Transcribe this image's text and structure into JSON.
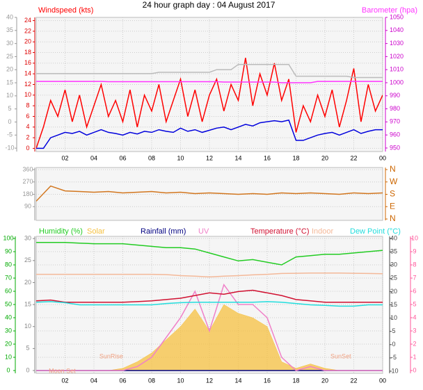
{
  "title": "24 hour graph day : 04 August 2017",
  "chart_data": [
    {
      "type": "line",
      "x": [
        0,
        0.5,
        1,
        1.5,
        2,
        2.5,
        3,
        3.5,
        4,
        4.5,
        5,
        5.5,
        6,
        6.5,
        7,
        7.5,
        8,
        8.5,
        9,
        9.5,
        10,
        10.5,
        11,
        11.5,
        12,
        12.5,
        13,
        13.5,
        14,
        14.5,
        15,
        15.5,
        16,
        16.5,
        17,
        17.5,
        18,
        18.5,
        19,
        19.5,
        20,
        20.5,
        21,
        21.5,
        22,
        22.5,
        23,
        23.5,
        24
      ],
      "xlim": [
        0,
        24
      ],
      "xticks": [
        {
          "value": 2,
          "label": "02"
        },
        {
          "value": 4,
          "label": "04"
        },
        {
          "value": 6,
          "label": "06"
        },
        {
          "value": 8,
          "label": "08"
        },
        10,
        12,
        14,
        16,
        18,
        20,
        22,
        {
          "value": 24,
          "label": "00"
        }
      ],
      "ylim": [
        -0.6,
        24.6
      ],
      "yticks": [
        0,
        2,
        4,
        6,
        8,
        10,
        12,
        14,
        16,
        18,
        20,
        22,
        24
      ],
      "y2lim": [
        947.3,
        1050
      ],
      "y2ticks": [
        950,
        960,
        970,
        980,
        990,
        1000,
        1010,
        1020,
        1030,
        1040,
        1050
      ],
      "y3lim": [
        -11.3,
        40
      ],
      "y3ticks": [
        -10,
        -5,
        0,
        5,
        10,
        15,
        20,
        25,
        30,
        35,
        40
      ],
      "axis_colors": {
        "y": "#dd0000",
        "y2": "#cc00cc",
        "y3": "#999999"
      },
      "grid": true,
      "series": [
        {
          "name": "Windspeed (kts)",
          "color": "#ff0000",
          "values": [
            0,
            4,
            9,
            6,
            11,
            5,
            10,
            4,
            8,
            12,
            6,
            9,
            5,
            11,
            4,
            10,
            7,
            12,
            5,
            9,
            13,
            6,
            11,
            5,
            10,
            13,
            7,
            12,
            9,
            17,
            8,
            14,
            10,
            16,
            9,
            13,
            3,
            8,
            5,
            10,
            6,
            11,
            4,
            9,
            15,
            5,
            12,
            7,
            10
          ]
        },
        {
          "color": "#0000dd",
          "values": [
            0,
            0,
            2,
            2.5,
            3,
            2.8,
            3.2,
            2.5,
            3,
            3.5,
            3,
            2.8,
            2.5,
            3,
            2.7,
            3.2,
            3,
            3.5,
            3.2,
            3,
            3.8,
            3.2,
            3.5,
            3,
            3.4,
            3.8,
            4,
            3.5,
            4,
            4.5,
            4.2,
            4.8,
            5,
            5.2,
            5,
            5.3,
            1.5,
            1.5,
            2,
            2.5,
            2.8,
            3,
            2.5,
            3,
            3.5,
            2.8,
            3.2,
            3.5,
            3.5
          ]
        },
        {
          "color": "#bbbbbb",
          "axis": "y3",
          "values": [
            18.5,
            18.5,
            18.5,
            18.5,
            18.5,
            18.5,
            18.5,
            18.5,
            18.5,
            18.5,
            18.5,
            18.5,
            18.5,
            18.5,
            18.5,
            18.5,
            18.5,
            19,
            19,
            19,
            19,
            19,
            19,
            19,
            19,
            20,
            20,
            20,
            22,
            22,
            22,
            22,
            22,
            22,
            22,
            22,
            17.5,
            17.5,
            17.5,
            17.5,
            17.5,
            17.5,
            17.5,
            17.5,
            17,
            17,
            17,
            17,
            17
          ]
        },
        {
          "name": "Barometer (hpa)",
          "color": "#ff33ff",
          "axis": "y2",
          "values": [
            1001,
            1001,
            1001,
            1001,
            1001,
            1001,
            1001,
            1001,
            1001,
            1001,
            1000.8,
            1000.8,
            1000.8,
            1000.8,
            1000.8,
            1000.8,
            1000.8,
            1000.8,
            1000.8,
            1000.8,
            1000.8,
            1000.8,
            1000.8,
            1000.8,
            1000.8,
            1000.8,
            1000.5,
            1000.5,
            1000.5,
            1000.5,
            1000.5,
            1000.5,
            1000.5,
            1000.5,
            1000,
            1000,
            1000,
            1000,
            1000,
            1001,
            1001,
            1001,
            1001,
            1001,
            1001,
            1001,
            1001,
            1001,
            1001
          ]
        }
      ]
    },
    {
      "type": "line",
      "x": [
        0,
        1,
        2,
        3,
        4,
        5,
        6,
        7,
        8,
        9,
        10,
        11,
        12,
        13,
        14,
        15,
        16,
        17,
        18,
        19,
        20,
        21,
        22,
        23,
        24
      ],
      "xlim": [
        0,
        24
      ],
      "ylim": [
        -10,
        375
      ],
      "yticks": [
        90,
        180,
        270,
        360
      ],
      "y2lim": [
        -10,
        375
      ],
      "y2ticks": [
        {
          "value": 0,
          "label": "N"
        },
        {
          "value": 90,
          "label": "E"
        },
        {
          "value": 180,
          "label": "S"
        },
        {
          "value": 270,
          "label": "W"
        },
        {
          "value": 360,
          "label": "N"
        }
      ],
      "axis_colors": {
        "y": "#999999",
        "y2": "#cc6600"
      },
      "grid": true,
      "series": [
        {
          "color": "#d2761e",
          "values": [
            130,
            240,
            205,
            200,
            195,
            200,
            190,
            195,
            200,
            190,
            195,
            185,
            190,
            185,
            180,
            185,
            180,
            190,
            185,
            190,
            185,
            180,
            190,
            185,
            190
          ]
        }
      ]
    },
    {
      "type": "line",
      "x": [
        0,
        1,
        2,
        3,
        4,
        5,
        6,
        7,
        8,
        9,
        10,
        11,
        12,
        13,
        14,
        15,
        16,
        17,
        18,
        19,
        20,
        21,
        22,
        23,
        24
      ],
      "xlim": [
        0,
        24
      ],
      "xticks": [
        {
          "value": 2,
          "label": "02"
        },
        {
          "value": 4,
          "label": "04"
        },
        {
          "value": 6,
          "label": "06"
        },
        {
          "value": 8,
          "label": "08"
        },
        10,
        12,
        14,
        16,
        18,
        20,
        22,
        {
          "value": 24,
          "label": "00"
        }
      ],
      "ylim": [
        -2.1,
        101.6
      ],
      "yticks": [
        0,
        10,
        20,
        30,
        40,
        50,
        60,
        70,
        80,
        90,
        100
      ],
      "y2lim": [
        -10.8,
        40.8
      ],
      "y2ticks": [
        -10,
        -5,
        0,
        5,
        10,
        15,
        20,
        25,
        30,
        35,
        40
      ],
      "y3lim": [
        -0.63,
        30.5
      ],
      "y3ticks": [
        0,
        5,
        10,
        15,
        20,
        25,
        30
      ],
      "y4lim": [
        -0.21,
        10.16
      ],
      "y4ticks": [
        0,
        1,
        2,
        3,
        4,
        5,
        6,
        7,
        8,
        9,
        10
      ],
      "axis_colors": {
        "y": "#00aa00",
        "y2": "#444444",
        "y3": "#888888",
        "y4": "#ff5599"
      },
      "grid": true,
      "series": [
        {
          "name": "Humidity (%)",
          "color": "#22cc22",
          "values": [
            97,
            97,
            97,
            96.5,
            96,
            96,
            96,
            95,
            94,
            93,
            93,
            92,
            89,
            86,
            83,
            84,
            82,
            80,
            86,
            87,
            88,
            88,
            89,
            90,
            91
          ]
        },
        {
          "name": "Solar",
          "color": "#f5c040",
          "axis": "y3",
          "area": true,
          "values": [
            0,
            0,
            0,
            0,
            0,
            0,
            0.5,
            2,
            4,
            7,
            10,
            14,
            9,
            15,
            13,
            12,
            10,
            2,
            0.5,
            1.5,
            0.5,
            0,
            0,
            0,
            0
          ]
        },
        {
          "name": "Rainfall (mm)",
          "color": "#000080",
          "axis": "y3",
          "values": [
            0,
            0,
            0,
            0,
            0,
            0,
            0,
            0,
            0,
            0,
            0,
            0,
            0,
            0,
            0,
            0,
            0,
            0,
            0,
            0,
            0,
            0,
            0,
            0,
            0
          ]
        },
        {
          "name": "UV",
          "color": "#f080c8",
          "axis": "y4",
          "values": [
            0,
            0,
            0,
            0,
            0,
            0,
            0,
            0.3,
            1,
            2.5,
            4,
            6,
            3,
            6.5,
            5,
            5,
            4,
            1,
            0,
            0.3,
            0,
            0,
            0,
            0,
            0
          ]
        },
        {
          "name": "Temperature (°C)",
          "color": "#d01030",
          "axis": "y2",
          "values": [
            16.5,
            16.8,
            16,
            16,
            16,
            16,
            16,
            16.2,
            16.5,
            17,
            17.5,
            18.5,
            19.5,
            19,
            20,
            20.5,
            19.5,
            18.5,
            17,
            16.5,
            16,
            16,
            16,
            16,
            16
          ]
        },
        {
          "name": "Indoor",
          "color": "#f4b898",
          "axis": "y2",
          "values": [
            26.5,
            26.5,
            26.5,
            26.5,
            26.5,
            26.5,
            26.5,
            26.5,
            26.5,
            26.4,
            26,
            25.8,
            25.5,
            25.8,
            26,
            26.3,
            26.5,
            26.8,
            26.9,
            27,
            27,
            27,
            26.9,
            26.8,
            26.7
          ]
        },
        {
          "name": "Dew Point (°C)",
          "color": "#22dddd",
          "axis": "y2",
          "values": [
            16,
            16.2,
            15.8,
            15,
            15,
            15,
            15,
            15,
            15,
            15.5,
            15.8,
            16,
            16,
            16,
            16,
            16,
            16.2,
            16,
            15.5,
            15,
            14.8,
            14.5,
            14.5,
            15,
            15
          ]
        }
      ],
      "annotations": [
        {
          "text": "Moon Set",
          "x": 1.8
        },
        {
          "text": "SunRise",
          "x": 5.2
        },
        {
          "text": "SunSet",
          "x": 21.1
        }
      ]
    }
  ]
}
